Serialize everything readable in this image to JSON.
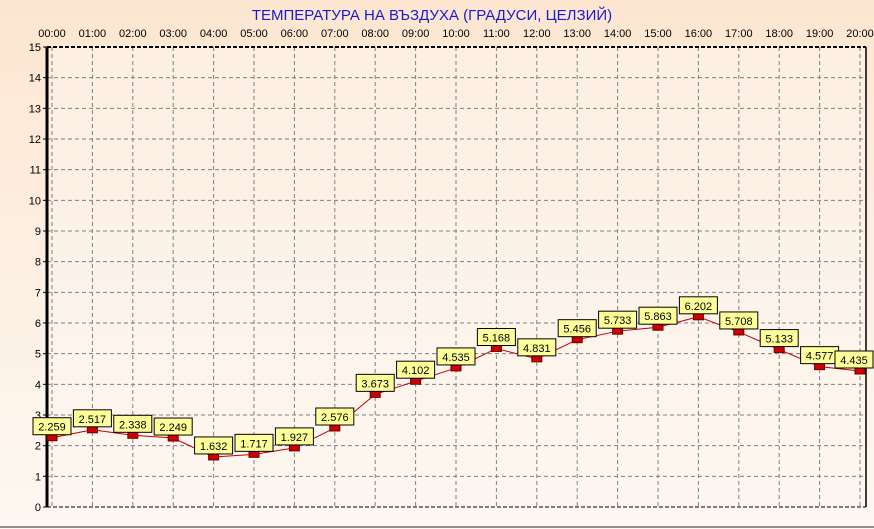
{
  "chart_data": {
    "type": "line",
    "title": "ТЕМПЕРАТУРА НА ВЪЗДУХА  (ГРАДУСИ, ЦЕЛЗИЙ)",
    "xlabel": "",
    "ylabel": "",
    "categories": [
      "00:00",
      "01:00",
      "02:00",
      "03:00",
      "04:00",
      "05:00",
      "06:00",
      "07:00",
      "08:00",
      "09:00",
      "10:00",
      "11:00",
      "12:00",
      "13:00",
      "14:00",
      "15:00",
      "16:00",
      "17:00",
      "18:00",
      "19:00",
      "20:00"
    ],
    "values": [
      2.259,
      2.517,
      2.338,
      2.249,
      1.632,
      1.717,
      1.927,
      2.576,
      3.673,
      4.102,
      4.535,
      5.168,
      4.831,
      5.456,
      5.733,
      5.863,
      6.202,
      5.708,
      5.133,
      4.577,
      4.435
    ],
    "ylim": [
      0,
      15
    ],
    "yticks": [
      0,
      1,
      2,
      3,
      4,
      5,
      6,
      7,
      8,
      9,
      10,
      11,
      12,
      13,
      14,
      15
    ],
    "x_axis_position": "top",
    "grid": true,
    "data_labels": true,
    "colors": {
      "line": "#c00000",
      "marker": "#d00000",
      "label_bg": "#ffff99",
      "title": "#1a1ad0",
      "grid": "#808080"
    }
  }
}
